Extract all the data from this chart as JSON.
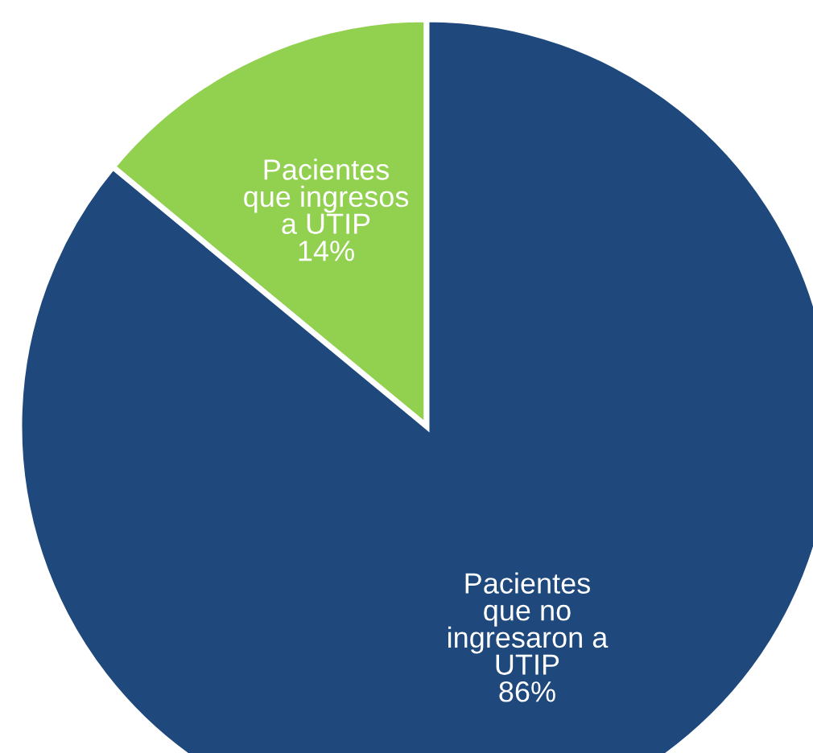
{
  "chart_data": {
    "type": "pie",
    "categories": [
      "Pacientes\nque ingresos\na UTIP",
      "Pacientes\nque no\ningresaron a\nUTIP"
    ],
    "values": [
      14,
      86
    ],
    "value_labels": [
      "14%",
      "86%"
    ],
    "colors": [
      "#92d050",
      "#1f497d"
    ],
    "legend": false
  }
}
